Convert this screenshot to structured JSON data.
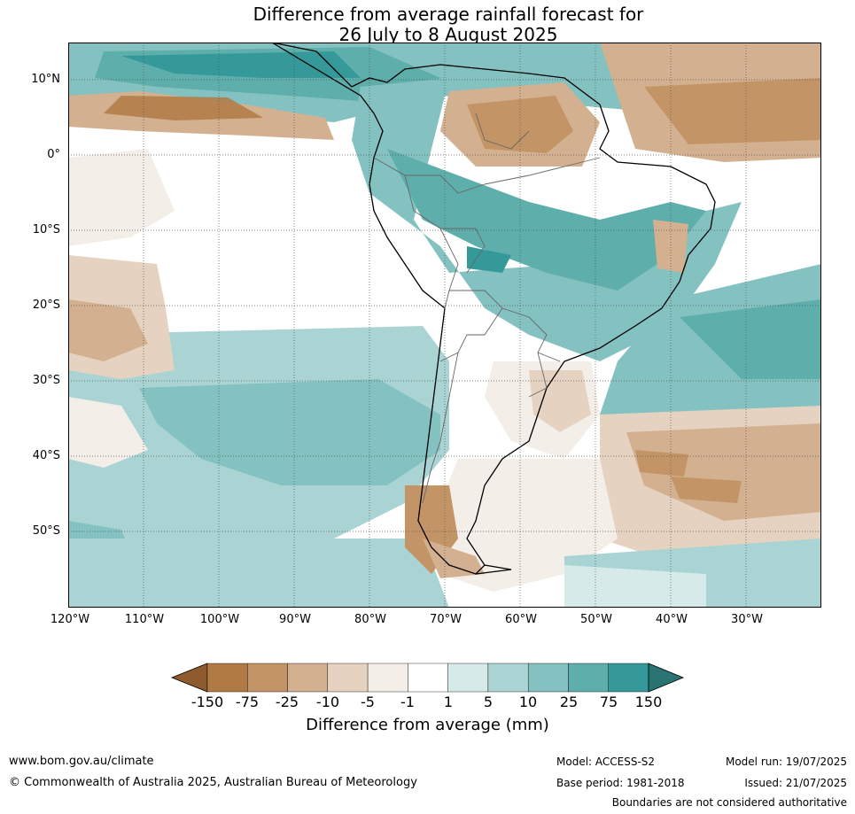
{
  "title": {
    "line1": "Difference from average rainfall forecast for",
    "line2": "26 July to 8 August 2025"
  },
  "map": {
    "lat_labels": [
      "10°N",
      "0°",
      "10°S",
      "20°S",
      "30°S",
      "40°S",
      "50°S"
    ],
    "lon_labels": [
      "120°W",
      "110°W",
      "100°W",
      "90°W",
      "80°W",
      "70°W",
      "60°W",
      "50°W",
      "40°W",
      "30°W"
    ]
  },
  "colorbar": {
    "label": "Difference from average (mm)",
    "ticks": [
      "-150",
      "-75",
      "-25",
      "-10",
      "-5",
      "-1",
      "1",
      "5",
      "10",
      "25",
      "75",
      "150"
    ],
    "colors": [
      "#8e5a2e",
      "#b07a44",
      "#c39566",
      "#d3b08f",
      "#e6d2c0",
      "#f3eee8",
      "#ffffff",
      "#d7eaea",
      "#a9d4d3",
      "#84c2c1",
      "#5eaeab",
      "#35999a",
      "#2a7373"
    ]
  },
  "footer": {
    "website": "www.bom.gov.au/climate",
    "copyright": "© Commonwealth of Australia 2025, Australian Bureau of Meteorology",
    "model": "Model: ACCESS-S2",
    "base_period": "Base period: 1981-2018",
    "model_run": "Model run: 19/07/2025",
    "issued": "Issued: 21/07/2025",
    "disclaimer": "Boundaries are not considered authoritative"
  }
}
